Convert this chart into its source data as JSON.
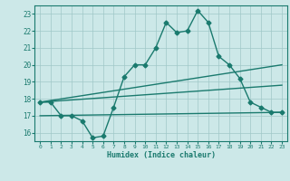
{
  "line1_x": [
    0,
    1,
    2,
    3,
    4,
    5,
    6,
    7,
    8,
    9,
    10,
    11,
    12,
    13,
    14,
    15,
    16,
    17,
    18,
    19,
    20,
    21,
    22,
    23
  ],
  "line1_y": [
    17.8,
    17.8,
    17.0,
    17.0,
    16.7,
    15.7,
    15.8,
    17.5,
    19.3,
    20.0,
    20.0,
    21.0,
    22.5,
    21.9,
    22.0,
    23.2,
    22.5,
    20.5,
    20.0,
    19.2,
    17.8,
    17.5,
    17.2,
    17.2
  ],
  "line2_x": [
    0,
    23
  ],
  "line2_y": [
    17.8,
    20.0
  ],
  "line3_x": [
    0,
    23
  ],
  "line3_y": [
    17.8,
    18.8
  ],
  "line4_x": [
    0,
    23
  ],
  "line4_y": [
    17.0,
    17.2
  ],
  "color": "#1a7a6e",
  "bg_color": "#cce8e8",
  "grid_color": "#a0c8c8",
  "xlim": [
    -0.5,
    23.5
  ],
  "ylim": [
    15.5,
    23.5
  ],
  "yticks": [
    16,
    17,
    18,
    19,
    20,
    21,
    22,
    23
  ],
  "xticks": [
    0,
    1,
    2,
    3,
    4,
    5,
    6,
    7,
    8,
    9,
    10,
    11,
    12,
    13,
    14,
    15,
    16,
    17,
    18,
    19,
    20,
    21,
    22,
    23
  ],
  "xlabel": "Humidex (Indice chaleur)",
  "marker": "D",
  "markersize": 2.5,
  "linewidth": 1.0
}
